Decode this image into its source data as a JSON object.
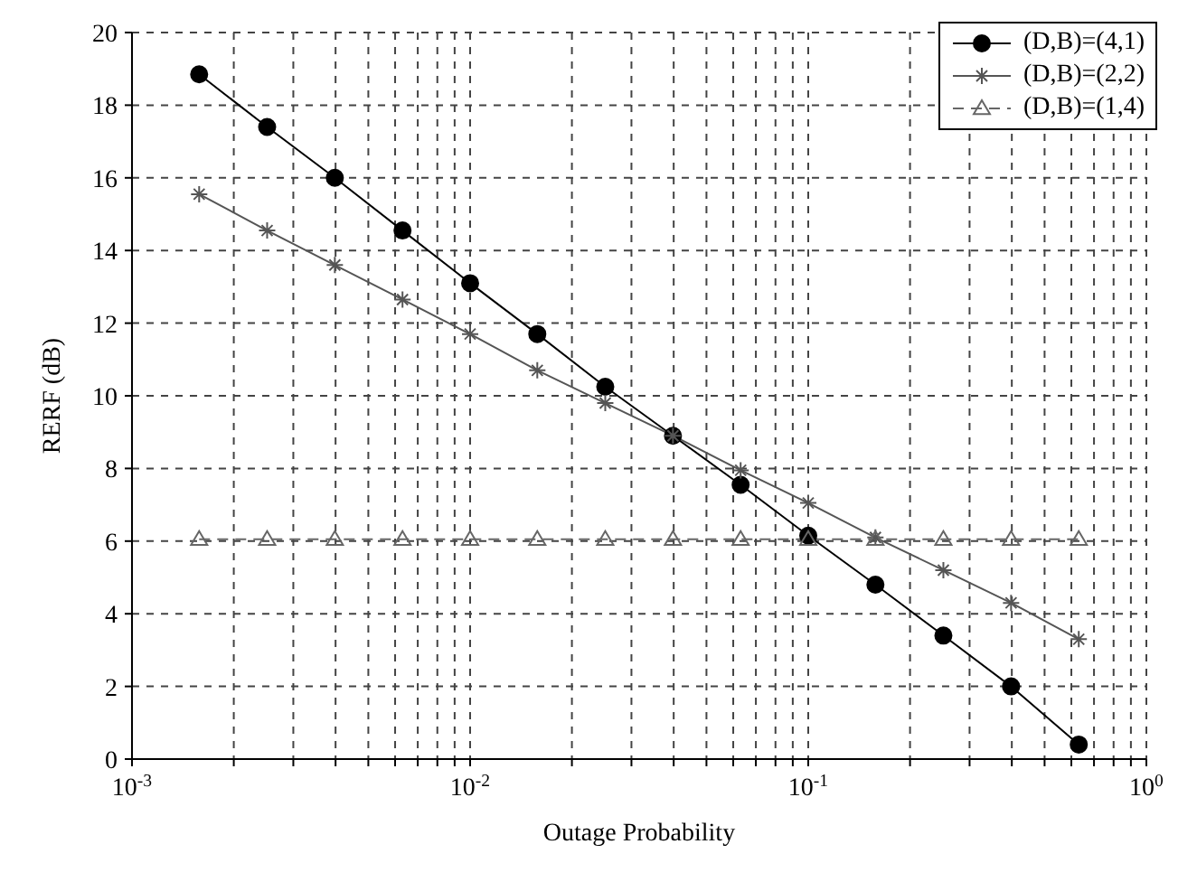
{
  "chart_data": {
    "type": "line",
    "xlabel": "Outage Probability",
    "ylabel": "RERF (dB)",
    "log": "x",
    "grid": true,
    "legend": "top right",
    "xlim": [
      0.001,
      1
    ],
    "ylim": [
      0,
      20
    ],
    "xticks": [
      {
        "value": 0.001,
        "label": "10$^{-3}$"
      },
      {
        "value": 0.002,
        "label": null
      },
      {
        "value": 0.003,
        "label": null
      },
      {
        "value": 0.004,
        "label": null
      },
      {
        "value": 0.005,
        "label": null
      },
      {
        "value": 0.006,
        "label": null
      },
      {
        "value": 0.007,
        "label": null
      },
      {
        "value": 0.008,
        "label": null
      },
      {
        "value": 0.009,
        "label": null
      },
      {
        "value": 0.01,
        "label": "10$^{-2}$"
      },
      {
        "value": 0.02,
        "label": null
      },
      {
        "value": 0.03,
        "label": null
      },
      {
        "value": 0.04,
        "label": null
      },
      {
        "value": 0.05,
        "label": null
      },
      {
        "value": 0.06,
        "label": null
      },
      {
        "value": 0.07,
        "label": null
      },
      {
        "value": 0.08,
        "label": null
      },
      {
        "value": 0.09,
        "label": null
      },
      {
        "value": 0.1,
        "label": "10$^{-1}$"
      },
      {
        "value": 0.2,
        "label": null
      },
      {
        "value": 0.3,
        "label": null
      },
      {
        "value": 0.4,
        "label": null
      },
      {
        "value": 0.5,
        "label": null
      },
      {
        "value": 0.6,
        "label": null
      },
      {
        "value": 0.7,
        "label": null
      },
      {
        "value": 0.8,
        "label": null
      },
      {
        "value": 0.9,
        "label": null
      },
      {
        "value": 1,
        "label": "10$^{0}$"
      }
    ],
    "yticks": [
      0,
      2,
      4,
      6,
      8,
      10,
      12,
      14,
      16,
      18,
      20
    ],
    "x": [
      0.00158,
      0.00251,
      0.00398,
      0.00631,
      0.01,
      0.0158,
      0.0251,
      0.0398,
      0.0631,
      0.1,
      0.158,
      0.251,
      0.398,
      0.631
    ],
    "series": [
      {
        "name": "(D,B)=(4,1)",
        "color": "#000000",
        "marker": "circle",
        "line_style": "solid",
        "values": [
          18.85,
          17.4,
          16.0,
          14.55,
          13.1,
          11.7,
          10.25,
          8.9,
          7.55,
          6.15,
          4.8,
          3.4,
          2.0,
          0.4
        ]
      },
      {
        "name": "(D,B)=(2,2)",
        "color": "#555555",
        "marker": "cross",
        "line_style": "solid",
        "values": [
          15.55,
          14.55,
          13.6,
          12.65,
          11.7,
          10.7,
          9.8,
          8.9,
          7.95,
          7.05,
          6.1,
          5.2,
          4.3,
          3.3
        ]
      },
      {
        "name": "(D,B)=(1,4)",
        "color": "#666666",
        "marker": "triangle",
        "line_style": "dashed",
        "values": [
          6.05,
          6.05,
          6.05,
          6.05,
          6.05,
          6.05,
          6.05,
          6.05,
          6.05,
          6.05,
          6.05,
          6.05,
          6.05,
          6.05
        ]
      }
    ]
  }
}
